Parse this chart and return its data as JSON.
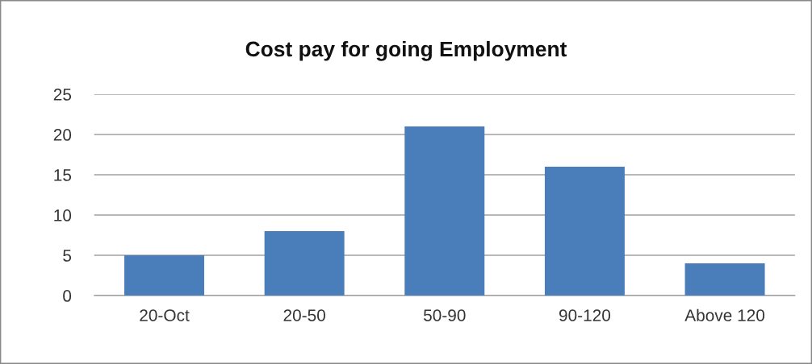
{
  "chart_data": {
    "type": "bar",
    "title": "Cost pay for going Employment",
    "categories": [
      "20-Oct",
      "20-50",
      "50-90",
      "90-120",
      "Above 120"
    ],
    "values": [
      5,
      8,
      21,
      16,
      4
    ],
    "color": "#4a7ebb",
    "ylim": [
      0,
      25
    ],
    "yticks": [
      0,
      5,
      10,
      15,
      20,
      25
    ],
    "grid": "y",
    "legend": false
  }
}
